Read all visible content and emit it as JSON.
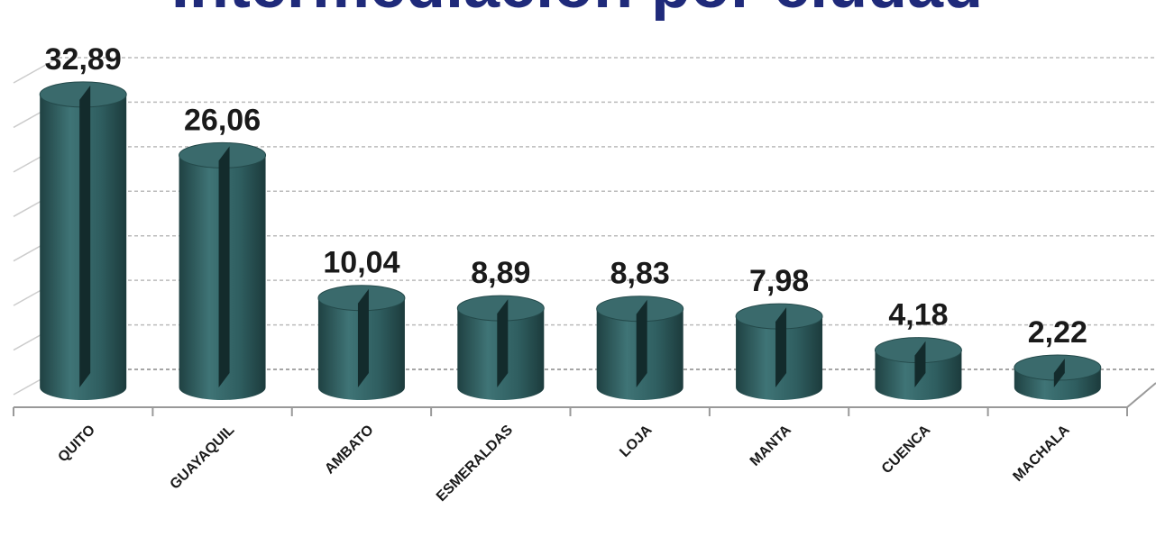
{
  "chart_data": {
    "type": "bar",
    "title": "Intermediación por ciudad",
    "categories": [
      "QUITO",
      "GUAYAQUIL",
      "AMBATO",
      "ESMERALDAS",
      "LOJA",
      "MANTA",
      "CUENCA",
      "MACHALA"
    ],
    "values": [
      32.89,
      26.06,
      10.04,
      8.89,
      8.83,
      7.98,
      4.18,
      2.22
    ],
    "value_labels": [
      "32,89",
      "26,06",
      "10,04",
      "8,89",
      "8,83",
      "7,98",
      "4,18",
      "2,22"
    ],
    "color": "#2f5e60",
    "ylim": [
      0,
      35
    ],
    "yticks": [
      0,
      5,
      10,
      15,
      20,
      25,
      30,
      35
    ],
    "grid": true
  }
}
